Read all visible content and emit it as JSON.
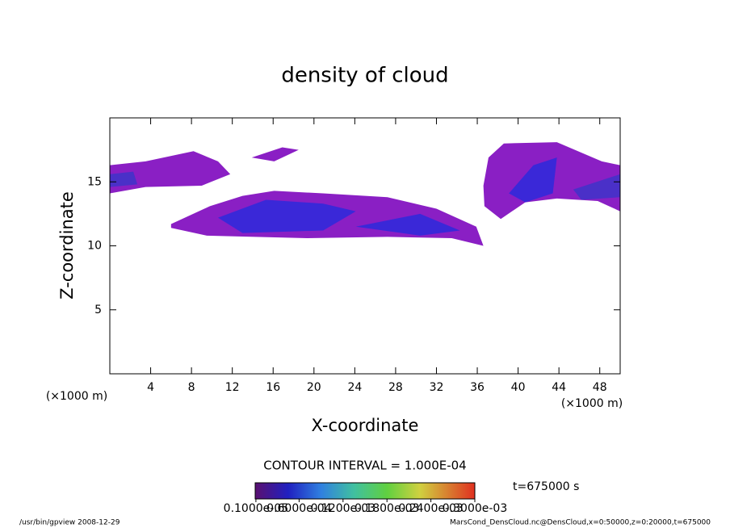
{
  "chart_data": {
    "type": "contour",
    "title": "density of cloud",
    "x_label": "X-coordinate",
    "y_label": "Z-coordinate",
    "x_unit": "(×1000 m)",
    "y_unit": "(×1000 m)",
    "xlim": [
      0,
      50
    ],
    "ylim": [
      0,
      20
    ],
    "xticks": [
      4,
      8,
      12,
      16,
      20,
      24,
      28,
      32,
      36,
      40,
      44,
      48
    ],
    "yticks": [
      5,
      10,
      15
    ],
    "contours": [
      {
        "level": 2e-05,
        "color": "#8a1fc4",
        "x": [
          6.0,
          9.8,
          13.0,
          16.1,
          20.9,
          27.2,
          32.0,
          35.9,
          36.6,
          33.5,
          27.2,
          19.3,
          9.5,
          6.0
        ],
        "y": [
          11.7,
          13.1,
          13.9,
          14.3,
          14.1,
          13.8,
          12.9,
          11.5,
          10.0,
          10.6,
          10.7,
          10.6,
          10.8,
          11.4
        ]
      },
      {
        "level": 0.00012,
        "color": "#3a28d8",
        "x": [
          10.6,
          15.3,
          20.9,
          24.1,
          20.9,
          13.0
        ],
        "y": [
          12.2,
          13.6,
          13.3,
          12.7,
          11.2,
          11.0
        ]
      },
      {
        "level": 0.00012,
        "color": "#3a28d8",
        "x": [
          24.1,
          30.4,
          34.3,
          30.4
        ],
        "y": [
          11.5,
          12.5,
          11.2,
          10.8
        ]
      },
      {
        "level": 2e-05,
        "color": "#8a1fc4",
        "x": [
          0,
          3.5,
          8.2,
          10.6,
          11.8,
          9.0,
          3.5,
          0
        ],
        "y": [
          16.3,
          16.6,
          17.4,
          16.6,
          15.6,
          14.7,
          14.6,
          14.1
        ]
      },
      {
        "level": 8e-05,
        "color": "#4a30c8",
        "x": [
          0,
          2.3,
          2.7,
          0
        ],
        "y": [
          15.6,
          15.8,
          14.8,
          14.6
        ]
      },
      {
        "level": 2e-05,
        "color": "#8a1fc4",
        "x": [
          13.9,
          16.9,
          18.5,
          16.1
        ],
        "y": [
          16.9,
          17.7,
          17.5,
          16.6
        ]
      },
      {
        "level": 2e-05,
        "color": "#8a1fc4",
        "x": [
          37.1,
          38.6,
          43.8,
          48.2,
          50,
          50,
          47.8,
          43.8,
          40.7,
          38.3,
          36.7,
          36.6
        ],
        "y": [
          16.9,
          18.0,
          18.1,
          16.6,
          16.3,
          12.7,
          13.5,
          13.7,
          13.4,
          12.1,
          13.1,
          14.7
        ]
      },
      {
        "level": 0.00012,
        "color": "#3a28d8",
        "x": [
          39.1,
          41.5,
          43.8,
          43.4,
          40.7
        ],
        "y": [
          14.1,
          16.3,
          16.9,
          14.1,
          13.4
        ]
      },
      {
        "level": 8e-05,
        "color": "#4a30c8",
        "x": [
          45.4,
          50,
          50,
          46.2
        ],
        "y": [
          14.4,
          15.6,
          13.8,
          13.6
        ]
      }
    ],
    "contour_interval": "CONTOUR INTERVAL = 1.000E-04",
    "time_label": "t=675000 s",
    "clim": [
      0,
      0.0003
    ],
    "cticks": [
      {
        "value": 1e-06,
        "label": "0.1000e-05"
      },
      {
        "value": 6e-05,
        "label": "0.6000e-04"
      },
      {
        "value": 0.00012,
        "label": "0.1200e-03"
      },
      {
        "value": 0.00018,
        "label": "0.1800e-03"
      },
      {
        "value": 0.00024,
        "label": "0.2400e-03"
      },
      {
        "value": 0.0003,
        "label": "0.3000e-03"
      }
    ],
    "footer_left": "/usr/bin/gpview   2008-12-29",
    "footer_right": "MarsCond_DensCloud.nc@DensCloud,x=0:50000,z=0:20000,t=675000"
  }
}
